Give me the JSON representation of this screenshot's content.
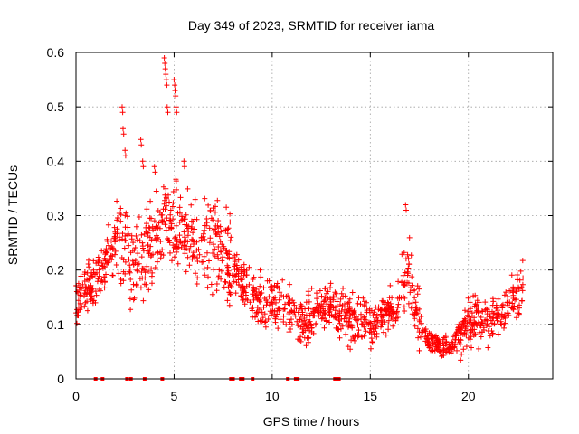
{
  "chart_data": {
    "type": "scatter",
    "title": "Day 349 of 2023, SRMTID for receiver iama",
    "xlabel": "GPS time / hours",
    "ylabel": "SRMTID / TECUs",
    "xlim": [
      0,
      24.3
    ],
    "ylim": [
      0,
      0.6
    ],
    "xticks": [
      0,
      5,
      10,
      15,
      20
    ],
    "yticks": [
      0,
      0.1,
      0.2,
      0.3,
      0.4,
      0.5,
      0.6
    ],
    "ytick_labels": [
      "0",
      "0.1",
      "0.2",
      "0.3",
      "0.4",
      "0.5",
      "0.6"
    ],
    "grid": true,
    "marker": "+",
    "colors": {
      "points": "#ff0000"
    },
    "trend": [
      {
        "x": 0.0,
        "y": 0.14
      },
      {
        "x": 0.5,
        "y": 0.17
      },
      {
        "x": 1.0,
        "y": 0.18
      },
      {
        "x": 1.5,
        "y": 0.22
      },
      {
        "x": 2.0,
        "y": 0.25
      },
      {
        "x": 2.5,
        "y": 0.27
      },
      {
        "x": 3.0,
        "y": 0.2
      },
      {
        "x": 3.5,
        "y": 0.22
      },
      {
        "x": 4.0,
        "y": 0.25
      },
      {
        "x": 4.5,
        "y": 0.3
      },
      {
        "x": 5.0,
        "y": 0.28
      },
      {
        "x": 5.5,
        "y": 0.27
      },
      {
        "x": 6.0,
        "y": 0.25
      },
      {
        "x": 6.5,
        "y": 0.25
      },
      {
        "x": 7.0,
        "y": 0.26
      },
      {
        "x": 7.5,
        "y": 0.24
      },
      {
        "x": 8.0,
        "y": 0.2
      },
      {
        "x": 8.5,
        "y": 0.17
      },
      {
        "x": 9.0,
        "y": 0.15
      },
      {
        "x": 9.5,
        "y": 0.14
      },
      {
        "x": 10.0,
        "y": 0.14
      },
      {
        "x": 10.5,
        "y": 0.13
      },
      {
        "x": 11.0,
        "y": 0.12
      },
      {
        "x": 11.5,
        "y": 0.1
      },
      {
        "x": 12.0,
        "y": 0.11
      },
      {
        "x": 12.5,
        "y": 0.13
      },
      {
        "x": 13.0,
        "y": 0.14
      },
      {
        "x": 13.5,
        "y": 0.12
      },
      {
        "x": 14.0,
        "y": 0.11
      },
      {
        "x": 14.5,
        "y": 0.1
      },
      {
        "x": 15.0,
        "y": 0.1
      },
      {
        "x": 15.5,
        "y": 0.11
      },
      {
        "x": 16.0,
        "y": 0.12
      },
      {
        "x": 16.5,
        "y": 0.14
      },
      {
        "x": 17.0,
        "y": 0.2
      },
      {
        "x": 17.3,
        "y": 0.14
      },
      {
        "x": 17.6,
        "y": 0.09
      },
      {
        "x": 18.0,
        "y": 0.07
      },
      {
        "x": 18.5,
        "y": 0.065
      },
      {
        "x": 19.0,
        "y": 0.06
      },
      {
        "x": 19.5,
        "y": 0.08
      },
      {
        "x": 20.0,
        "y": 0.1
      },
      {
        "x": 20.5,
        "y": 0.11
      },
      {
        "x": 21.0,
        "y": 0.11
      },
      {
        "x": 21.5,
        "y": 0.12
      },
      {
        "x": 22.0,
        "y": 0.13
      },
      {
        "x": 22.5,
        "y": 0.15
      },
      {
        "x": 22.8,
        "y": 0.17
      }
    ],
    "spikes": [
      {
        "x": 2.35,
        "y": 0.5
      },
      {
        "x": 2.4,
        "y": 0.46
      },
      {
        "x": 2.5,
        "y": 0.42
      },
      {
        "x": 3.3,
        "y": 0.44
      },
      {
        "x": 3.4,
        "y": 0.4
      },
      {
        "x": 4.0,
        "y": 0.39
      },
      {
        "x": 4.5,
        "y": 0.59
      },
      {
        "x": 4.55,
        "y": 0.57
      },
      {
        "x": 4.6,
        "y": 0.55
      },
      {
        "x": 4.65,
        "y": 0.5
      },
      {
        "x": 5.0,
        "y": 0.55
      },
      {
        "x": 5.05,
        "y": 0.53
      },
      {
        "x": 5.1,
        "y": 0.5
      },
      {
        "x": 5.5,
        "y": 0.4
      },
      {
        "x": 16.8,
        "y": 0.32
      }
    ],
    "baseline_markers_x": [
      1.0,
      1.35,
      2.6,
      2.8,
      3.5,
      4.4,
      7.9,
      8.0,
      8.4,
      8.5,
      9.0,
      10.8,
      11.2,
      11.3,
      13.2,
      13.4
    ]
  }
}
